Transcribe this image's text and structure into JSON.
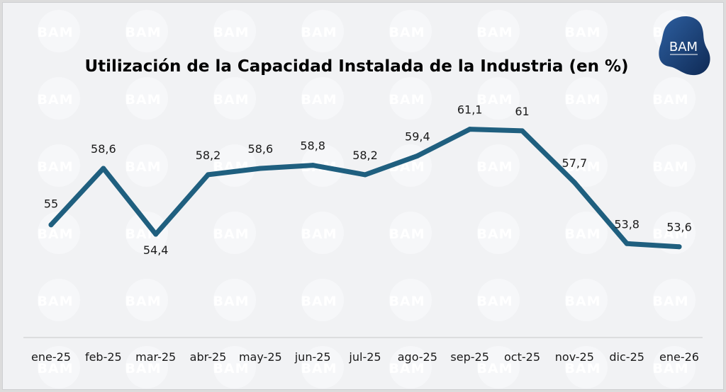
{
  "chart_data": {
    "type": "line",
    "title": "Utilización de la Capacidad Instalada de la Industria (en %)",
    "xlabel": "",
    "ylabel": "",
    "categories": [
      "ene-25",
      "feb-25",
      "mar-25",
      "abr-25",
      "may-25",
      "jun-25",
      "jul-25",
      "ago-25",
      "sep-25",
      "oct-25",
      "nov-25",
      "dic-25",
      "ene-26"
    ],
    "series": [
      {
        "name": "Utilización de la Capacidad Instalada",
        "values": [
          55,
          58.6,
          54.4,
          58.2,
          58.6,
          58.8,
          58.2,
          59.4,
          61.1,
          61,
          57.7,
          53.8,
          53.6
        ],
        "labels": [
          "55",
          "58,6",
          "54,4",
          "58,2",
          "58,6",
          "58,8",
          "58,2",
          "59,4",
          "61,1",
          "61",
          "57,7",
          "53,8",
          "53,6"
        ],
        "label_position": [
          "left",
          "above",
          "below",
          "above",
          "above",
          "above",
          "above",
          "above",
          "above",
          "above",
          "above",
          "above",
          "above"
        ],
        "color": "#1f5f7f"
      }
    ],
    "ylim": [
      49.5,
      63.5
    ],
    "grid": false,
    "legend": "none",
    "y_axis_visible": false
  },
  "branding": {
    "logo_text": "BAM",
    "watermark_text": "BAM",
    "logo_color": "#1d3f72"
  }
}
